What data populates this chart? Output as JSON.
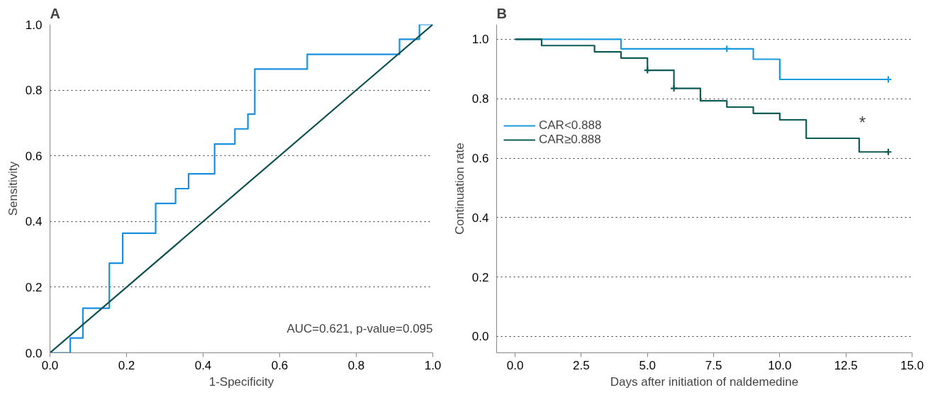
{
  "chart_data": [
    {
      "type": "step",
      "title": "A",
      "xlabel": "1-Specificity",
      "ylabel": "Sensitivity",
      "xlim": [
        0,
        1
      ],
      "ylim": [
        0,
        1
      ],
      "xticks": [
        {
          "value": 0,
          "label": "0.0"
        },
        {
          "value": 0.2,
          "label": "0.2"
        },
        {
          "value": 0.4,
          "label": "0.4"
        },
        {
          "value": 0.6,
          "label": "0.6"
        },
        {
          "value": 0.8,
          "label": "0.8"
        },
        {
          "value": 1,
          "label": "1.0"
        }
      ],
      "yticks": [
        {
          "value": 0,
          "label": "0.0"
        },
        {
          "value": 0.2,
          "label": "0.2"
        },
        {
          "value": 0.4,
          "label": "0.4"
        },
        {
          "value": 0.6,
          "label": "0.6"
        },
        {
          "value": 0.8,
          "label": "0.8"
        },
        {
          "value": 1,
          "label": "1.0"
        }
      ],
      "grid": "y",
      "annotations": [
        {
          "text": "AUC=0.621, p-value=0.095"
        }
      ],
      "series": [
        {
          "color": "#1a8fe0",
          "x": [
            0,
            0.053,
            0.086,
            0.155,
            0.19,
            0.276,
            0.328,
            0.362,
            0.43,
            0.483,
            0.517,
            0.535,
            0.672,
            0.913,
            0.965,
            1.0
          ],
          "values": [
            0,
            0.045,
            0.136,
            0.273,
            0.364,
            0.455,
            0.5,
            0.545,
            0.636,
            0.682,
            0.727,
            0.864,
            0.909,
            0.955,
            1.0,
            1.0
          ]
        },
        {
          "type": "line",
          "color": "#0d4f4f",
          "x": [
            0,
            1
          ],
          "values": [
            0,
            1
          ]
        }
      ]
    },
    {
      "type": "step",
      "title": "B",
      "xlabel": "Days after initiation of naldemedine",
      "ylabel": "Continuation rate",
      "xlim": [
        -0.7,
        15
      ],
      "ylim": [
        -0.055,
        1.05
      ],
      "xticks": [
        {
          "value": 0,
          "label": "0.0"
        },
        {
          "value": 2.5,
          "label": "2.5"
        },
        {
          "value": 5,
          "label": "5.0"
        },
        {
          "value": 7.5,
          "label": "7.5"
        },
        {
          "value": 10,
          "label": "10.0"
        },
        {
          "value": 12.5,
          "label": "12.5"
        },
        {
          "value": 15,
          "label": "15.0"
        }
      ],
      "yticks": [
        {
          "value": 0,
          "label": "0.0"
        },
        {
          "value": 0.2,
          "label": "0.2"
        },
        {
          "value": 0.4,
          "label": "0.4"
        },
        {
          "value": 0.6,
          "label": "0.6"
        },
        {
          "value": 0.8,
          "label": "0.8"
        },
        {
          "value": 1,
          "label": "1.0"
        }
      ],
      "grid": "y",
      "legend": "left",
      "annotations": [
        "*"
      ],
      "series": [
        {
          "name": "CAR<0.888",
          "color": "#1a9be0",
          "x": [
            0,
            4,
            9,
            10,
            14.1
          ],
          "values": [
            1,
            0.968,
            0.933,
            0.865,
            0.865
          ]
        },
        {
          "name": "CAR≥0.888",
          "color": "#0f5c55",
          "x": [
            0,
            1,
            3,
            4,
            5,
            6,
            7,
            8,
            9,
            10,
            11,
            13,
            14.1
          ],
          "values": [
            1,
            0.979,
            0.958,
            0.937,
            0.896,
            0.835,
            0.793,
            0.772,
            0.751,
            0.729,
            0.667,
            0.621,
            0.621
          ]
        },
        {
          "type": "scatter",
          "marker": "cross",
          "color": "#1a9be0",
          "x": [
            8,
            14.1
          ],
          "values": [
            0.968,
            0.865
          ]
        },
        {
          "type": "scatter",
          "marker": "cross",
          "color": "#0f5c55",
          "x": [
            5,
            6,
            14.1
          ],
          "values": [
            0.896,
            0.835,
            0.621
          ]
        }
      ]
    }
  ]
}
